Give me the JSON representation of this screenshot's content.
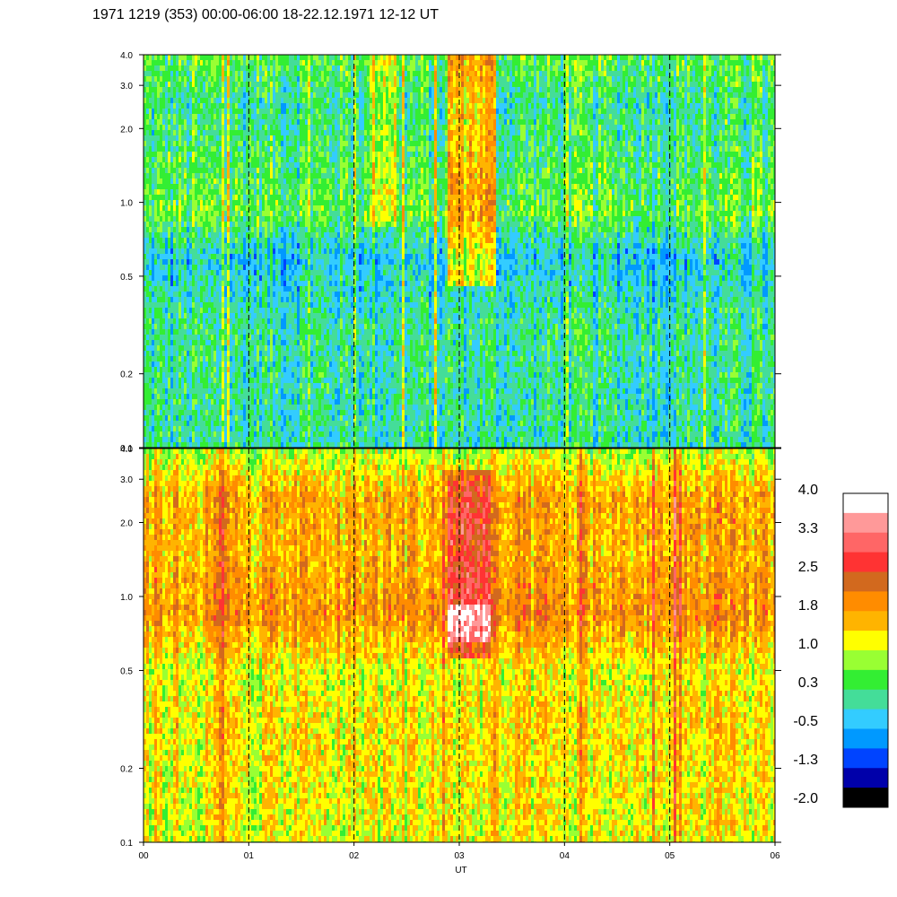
{
  "title": "1971 1219 (353) 00:00-06:00 18-22.12.1971  12-12 UT",
  "chart_data": [
    {
      "type": "heatmap",
      "panel": "upper",
      "x_ticks": [
        "00",
        "01",
        "02",
        "03",
        "04",
        "05",
        "06"
      ],
      "x_range": [
        0,
        6
      ],
      "y_scale": "log",
      "y_range": [
        0.1,
        4.0
      ],
      "y_ticks": [
        {
          "value": 0.1,
          "label": "0.1"
        },
        {
          "value": 0.2,
          "label": "0.2"
        },
        {
          "value": 0.5,
          "label": "0.5"
        },
        {
          "value": 1.0,
          "label": "1.0"
        },
        {
          "value": 2.0,
          "label": "2.0"
        },
        {
          "value": 3.0,
          "label": "3.0"
        },
        {
          "value": 4.0,
          "label": "4.0"
        }
      ],
      "base_level_by_freq": [
        {
          "freq": 0.1,
          "level": 0.0
        },
        {
          "freq": 0.3,
          "level": 0.1
        },
        {
          "freq": 0.6,
          "level": -0.3
        },
        {
          "freq": 0.9,
          "level": 0.5
        },
        {
          "freq": 1.5,
          "level": 0.3
        },
        {
          "freq": 2.5,
          "level": 0.1
        },
        {
          "freq": 4.0,
          "level": 0.5
        }
      ],
      "events": [
        {
          "t_start": 2.9,
          "t_end": 3.35,
          "f_low": 0.45,
          "f_high": 4.0,
          "delta": 1.3
        },
        {
          "t_start": 2.15,
          "t_end": 2.4,
          "f_low": 0.8,
          "f_high": 4.0,
          "delta": 0.8
        }
      ],
      "dashed_hours": [
        1,
        2,
        3,
        4,
        5
      ]
    },
    {
      "type": "heatmap",
      "panel": "lower",
      "x_ticks": [
        "00",
        "01",
        "02",
        "03",
        "04",
        "05",
        "06"
      ],
      "x_label": "UT",
      "x_range": [
        0,
        6
      ],
      "y_scale": "log",
      "y_range": [
        0.1,
        4.0
      ],
      "y_ticks": [
        {
          "value": 0.1,
          "label": "0.1"
        },
        {
          "value": 0.2,
          "label": "0.2"
        },
        {
          "value": 0.5,
          "label": "0.5"
        },
        {
          "value": 1.0,
          "label": "1.0"
        },
        {
          "value": 2.0,
          "label": "2.0"
        },
        {
          "value": 3.0,
          "label": "3.0"
        },
        {
          "value": 4.0,
          "label": "4.0"
        }
      ],
      "base_level_by_freq": [
        {
          "freq": 0.1,
          "level": 1.1
        },
        {
          "freq": 0.3,
          "level": 1.3
        },
        {
          "freq": 0.5,
          "level": 1.1
        },
        {
          "freq": 0.85,
          "level": 1.9
        },
        {
          "freq": 1.5,
          "level": 1.6
        },
        {
          "freq": 2.5,
          "level": 1.7
        },
        {
          "freq": 3.5,
          "level": 1.1
        },
        {
          "freq": 4.0,
          "level": 0.8
        }
      ],
      "events": [
        {
          "t_start": 2.9,
          "t_end": 3.3,
          "f_low": 0.55,
          "f_high": 3.2,
          "delta": 1.0
        },
        {
          "t_start": 2.9,
          "t_end": 3.3,
          "f_low": 0.65,
          "f_high": 0.95,
          "delta": 0.8
        }
      ],
      "dashed_hours": [
        1,
        2,
        3,
        4,
        5
      ]
    }
  ],
  "colorbar": {
    "labels": [
      "4.0",
      "3.3",
      "2.5",
      "1.8",
      "1.0",
      "0.3",
      "-0.5",
      "-1.3",
      "-2.0"
    ],
    "range": [
      -2.0,
      4.0
    ],
    "colors_top_to_bottom": [
      "#ffffff",
      "#ff9999",
      "#ff6666",
      "#ff3333",
      "#d2691e",
      "#ff8c00",
      "#ffb400",
      "#ffff00",
      "#99ff33",
      "#33ee33",
      "#44dd99",
      "#33ccff",
      "#0099ff",
      "#0044ff",
      "#0000aa",
      "#000000"
    ]
  }
}
